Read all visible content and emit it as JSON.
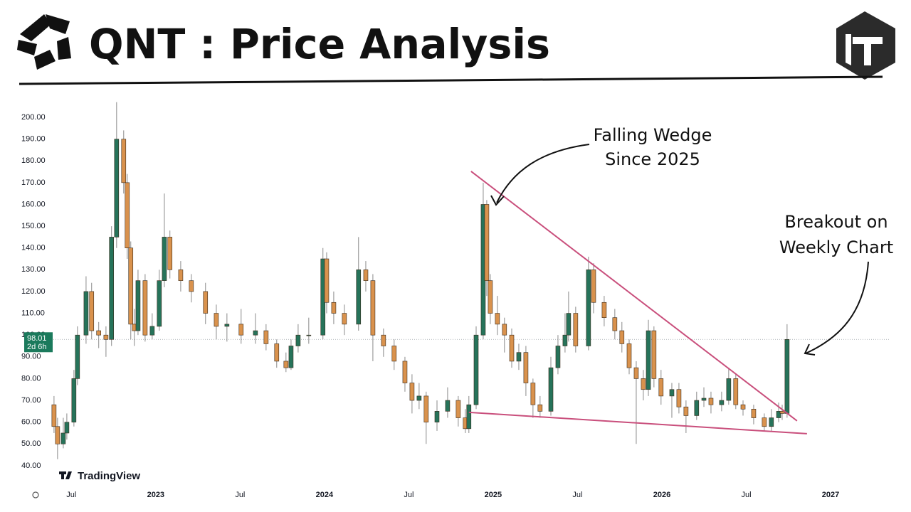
{
  "header": {
    "title": "QNT : Price Analysis"
  },
  "chart_data": {
    "type": "candlestick",
    "watermark": "TradingView",
    "xlim": [
      2022.33,
      2027.35
    ],
    "ylim": [
      31.8,
      209.8
    ],
    "xticks": [
      {
        "value": 2022.5,
        "label": "Jul"
      },
      2023,
      {
        "value": 2023.5,
        "label": "Jul"
      },
      2024,
      {
        "value": 2024.5,
        "label": "Jul"
      },
      2025,
      {
        "value": 2025.5,
        "label": "Jul"
      },
      2026,
      {
        "value": 2026.5,
        "label": "Jul"
      },
      2027
    ],
    "yticks": [
      {
        "value": 40,
        "label": "40.00"
      },
      {
        "value": 50,
        "label": "50.00"
      },
      {
        "value": 60,
        "label": "60.00"
      },
      {
        "value": 70,
        "label": "70.00"
      },
      {
        "value": 80,
        "label": "80.00"
      },
      {
        "value": 90,
        "label": "90.00"
      },
      {
        "value": 100,
        "label": "100.00"
      },
      {
        "value": 110,
        "label": "110.00"
      },
      {
        "value": 120,
        "label": "120.00"
      },
      {
        "value": 130,
        "label": "130.00"
      },
      {
        "value": 140,
        "label": "140.00"
      },
      {
        "value": 150,
        "label": "150.00"
      },
      {
        "value": 160,
        "label": "160.00"
      },
      {
        "value": 170,
        "label": "170.00"
      },
      {
        "value": 180,
        "label": "180.00"
      },
      {
        "value": 190,
        "label": "190.00"
      },
      {
        "value": 200,
        "label": "200.00"
      }
    ],
    "up_color": "#26735a",
    "down_color": "#d9924d",
    "x": [
      2022.397,
      2022.418,
      2022.452,
      2022.473,
      2022.515,
      2022.536,
      2022.587,
      2022.62,
      2022.662,
      2022.705,
      2022.738,
      2022.768,
      2022.81,
      2022.831,
      2022.852,
      2022.873,
      2022.895,
      2022.937,
      2022.979,
      2023.021,
      2023.051,
      2023.084,
      2023.148,
      2023.211,
      2023.295,
      2023.359,
      2023.422,
      2023.506,
      2023.591,
      2023.654,
      2023.717,
      2023.772,
      2023.802,
      2023.844,
      2023.907,
      2023.991,
      2024.013,
      2024.055,
      2024.118,
      2024.202,
      2024.245,
      2024.287,
      2024.35,
      2024.413,
      2024.477,
      2024.519,
      2024.561,
      2024.603,
      2024.667,
      2024.73,
      2024.793,
      2024.835,
      2024.856,
      2024.899,
      2024.941,
      2024.962,
      2024.983,
      2025.025,
      2025.067,
      2025.11,
      2025.152,
      2025.194,
      2025.236,
      2025.278,
      2025.342,
      2025.384,
      2025.426,
      2025.447,
      2025.489,
      2025.565,
      2025.595,
      2025.658,
      2025.721,
      2025.763,
      2025.806,
      2025.848,
      2025.89,
      2025.92,
      2025.953,
      2025.995,
      2026.059,
      2026.101,
      2026.143,
      2026.206,
      2026.249,
      2026.291,
      2026.354,
      2026.396,
      2026.438,
      2026.481,
      2026.544,
      2026.607,
      2026.649,
      2026.692,
      2026.713,
      2026.742
    ],
    "open": [
      68,
      58,
      50,
      55,
      60,
      80,
      100,
      120,
      102,
      100,
      98,
      145,
      190,
      170,
      140,
      105,
      102,
      125,
      100,
      104,
      125,
      145,
      130,
      125,
      120,
      110,
      104,
      105,
      100,
      102,
      96,
      88,
      85,
      95,
      100,
      100,
      135,
      115,
      110,
      105,
      130,
      125,
      100,
      95,
      88,
      78,
      70,
      72,
      60,
      65,
      70,
      62,
      57,
      68,
      100,
      160,
      125,
      110,
      105,
      100,
      88,
      92,
      78,
      68,
      65,
      85,
      95,
      100,
      110,
      95,
      130,
      115,
      108,
      102,
      96,
      85,
      80,
      75,
      102,
      80,
      72,
      75,
      67,
      63,
      70,
      71,
      68,
      70,
      80,
      68,
      66,
      62,
      58,
      62,
      65,
      64
    ],
    "high": [
      72,
      62,
      62,
      64,
      84,
      104,
      127,
      124,
      106,
      104,
      150,
      207,
      194,
      174,
      143,
      112,
      130,
      128,
      110,
      130,
      165,
      148,
      134,
      128,
      124,
      114,
      110,
      112,
      110,
      105,
      98,
      92,
      98,
      105,
      108,
      140,
      138,
      120,
      114,
      145,
      134,
      128,
      103,
      98,
      90,
      82,
      78,
      74,
      70,
      76,
      72,
      66,
      72,
      104,
      170,
      162,
      128,
      118,
      108,
      103,
      96,
      95,
      80,
      72,
      90,
      100,
      110,
      120,
      113,
      136,
      133,
      118,
      112,
      106,
      98,
      88,
      84,
      107,
      104,
      84,
      78,
      78,
      70,
      74,
      76,
      74,
      74,
      85,
      82,
      70,
      68,
      64,
      66,
      69,
      68,
      105
    ],
    "low": [
      55,
      43,
      48,
      52,
      58,
      77,
      96,
      98,
      94,
      90,
      95,
      140,
      165,
      135,
      98,
      95,
      100,
      97,
      98,
      102,
      122,
      126,
      120,
      115,
      105,
      98,
      97,
      96,
      96,
      93,
      85,
      83,
      84,
      92,
      96,
      98,
      110,
      105,
      100,
      102,
      120,
      88,
      90,
      84,
      74,
      64,
      66,
      50,
      56,
      62,
      58,
      55,
      55,
      66,
      98,
      118,
      105,
      100,
      92,
      85,
      84,
      72,
      62,
      62,
      63,
      82,
      92,
      97,
      92,
      93,
      110,
      104,
      98,
      92,
      82,
      50,
      70,
      72,
      76,
      68,
      62,
      64,
      55,
      61,
      67,
      64,
      65,
      68,
      66,
      63,
      59,
      56,
      56,
      60,
      61,
      62
    ],
    "close": [
      58,
      50,
      55,
      60,
      80,
      100,
      120,
      102,
      100,
      98,
      145,
      190,
      170,
      140,
      105,
      102,
      125,
      100,
      104,
      125,
      145,
      130,
      125,
      120,
      110,
      104,
      105,
      100,
      102,
      96,
      88,
      85,
      95,
      100,
      100,
      135,
      115,
      110,
      105,
      130,
      125,
      100,
      95,
      88,
      78,
      70,
      72,
      60,
      65,
      70,
      62,
      57,
      68,
      100,
      160,
      125,
      110,
      105,
      100,
      88,
      92,
      78,
      68,
      65,
      85,
      95,
      100,
      110,
      95,
      130,
      115,
      108,
      102,
      96,
      85,
      80,
      75,
      102,
      80,
      72,
      75,
      67,
      63,
      70,
      71,
      68,
      70,
      80,
      68,
      66,
      62,
      58,
      62,
      65,
      64,
      98
    ],
    "last_price": {
      "value": 98.01,
      "countdown": "2d 6h",
      "color": "#1b7a5c"
    },
    "trendlines": [
      {
        "x": [
          2024.869,
          2026.801
        ],
        "y": [
          175.2,
          60.6
        ],
        "color": "#c94f7c"
      },
      {
        "x": [
          2024.856,
          2026.86
        ],
        "y": [
          64.5,
          54.7
        ],
        "color": "#c94f7c"
      }
    ],
    "annotations": [
      {
        "lines": [
          "Falling Wedge",
          "Since 2025"
        ]
      },
      {
        "lines": [
          "Breakout on",
          "Weekly Chart"
        ]
      }
    ]
  }
}
